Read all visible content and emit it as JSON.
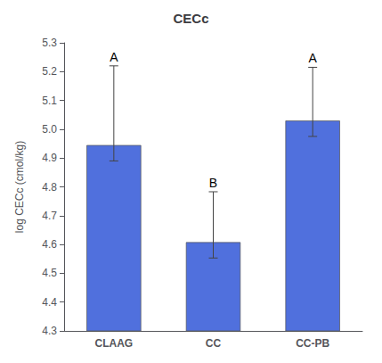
{
  "chart_data": {
    "type": "bar",
    "title": "CECc",
    "ylabel": "log CECc (cmol/kg)",
    "categories": [
      "CLAAG",
      "CC",
      "CC-PB"
    ],
    "values": [
      4.945,
      4.608,
      5.03
    ],
    "errors_upper": [
      0.275,
      0.175,
      0.185
    ],
    "errors_lower": [
      0.055,
      0.055,
      0.055
    ],
    "annotations": [
      "A",
      "B",
      "A"
    ],
    "ylim": [
      4.3,
      5.3
    ],
    "yticks": [
      4.3,
      4.4,
      4.5,
      4.6,
      4.7,
      4.8,
      4.9,
      {
        "value": 5.0,
        "label": "5.0"
      },
      5.1,
      5.2,
      5.3
    ],
    "grid": false
  }
}
